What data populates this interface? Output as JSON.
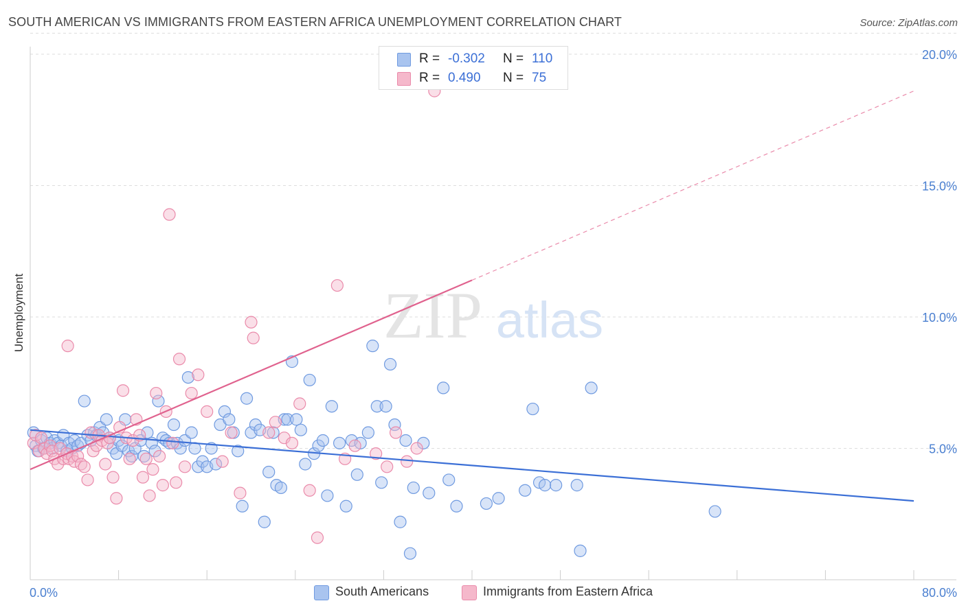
{
  "title": "SOUTH AMERICAN VS IMMIGRANTS FROM EASTERN AFRICA UNEMPLOYMENT CORRELATION CHART",
  "source": "Source: ZipAtlas.com",
  "watermark": {
    "zip": "ZIP",
    "atlas": "atlas"
  },
  "colors": {
    "blue": "#3b6fd6",
    "blue_fill": "#a9c4ef",
    "blue_stroke": "#6f9ae0",
    "pink": "#e0628e",
    "pink_fill": "#f5b8cb",
    "pink_stroke": "#ea8aaa",
    "tick_text": "#4a7fd0",
    "grid": "#dddddd"
  },
  "legend": {
    "rows": [
      {
        "r_label": "R =",
        "r_value": "-0.302",
        "n_label": "N =",
        "n_value": "110"
      },
      {
        "r_label": "R =",
        "r_value": "0.490",
        "n_label": "N =",
        "n_value": "75"
      }
    ],
    "bottom": [
      "South Americans",
      "Immigrants from Eastern Africa"
    ]
  },
  "chart_data": {
    "type": "scatter",
    "title": "SOUTH AMERICAN VS IMMIGRANTS FROM EASTERN AFRICA UNEMPLOYMENT CORRELATION CHART",
    "xlabel": "",
    "ylabel": "Unemployment",
    "xlim": [
      0,
      80
    ],
    "ylim": [
      0,
      20.8
    ],
    "x_ticks": [
      {
        "value": 0,
        "label": "0.0%"
      },
      {
        "value": 80,
        "label": "80.0%"
      }
    ],
    "y_ticks": [
      {
        "value": 5,
        "label": "5.0%"
      },
      {
        "value": 10,
        "label": "10.0%"
      },
      {
        "value": 15,
        "label": "15.0%"
      },
      {
        "value": 20,
        "label": "20.0%"
      }
    ],
    "grid": true,
    "legend_position": "top-center",
    "series": [
      {
        "name": "South Americans",
        "color": "#3b6fd6",
        "trend": {
          "x": [
            0,
            80
          ],
          "y": [
            5.7,
            3.0
          ],
          "style": "solid"
        },
        "points": [
          [
            0.3,
            5.6
          ],
          [
            0.5,
            5.1
          ],
          [
            0.7,
            4.9
          ],
          [
            1.0,
            5.3
          ],
          [
            1.2,
            5.0
          ],
          [
            1.5,
            5.4
          ],
          [
            1.8,
            5.2
          ],
          [
            2.0,
            5.0
          ],
          [
            2.2,
            5.3
          ],
          [
            2.5,
            5.2
          ],
          [
            2.8,
            5.1
          ],
          [
            3.0,
            5.5
          ],
          [
            3.3,
            4.9
          ],
          [
            3.5,
            5.2
          ],
          [
            3.8,
            5.0
          ],
          [
            4.0,
            5.3
          ],
          [
            4.3,
            5.1
          ],
          [
            4.6,
            5.2
          ],
          [
            4.9,
            6.8
          ],
          [
            5.2,
            5.5
          ],
          [
            5.5,
            5.3
          ],
          [
            5.8,
            5.6
          ],
          [
            6.0,
            5.5
          ],
          [
            6.3,
            5.8
          ],
          [
            6.6,
            5.6
          ],
          [
            6.9,
            6.1
          ],
          [
            7.2,
            5.4
          ],
          [
            7.5,
            5.0
          ],
          [
            7.8,
            4.8
          ],
          [
            8.0,
            5.3
          ],
          [
            8.3,
            5.1
          ],
          [
            8.6,
            6.1
          ],
          [
            8.9,
            4.9
          ],
          [
            9.2,
            4.7
          ],
          [
            9.5,
            5.0
          ],
          [
            10.0,
            5.3
          ],
          [
            10.3,
            4.7
          ],
          [
            10.6,
            5.6
          ],
          [
            11.0,
            5.2
          ],
          [
            11.3,
            4.9
          ],
          [
            11.6,
            6.8
          ],
          [
            12.0,
            5.4
          ],
          [
            12.3,
            5.3
          ],
          [
            12.6,
            5.2
          ],
          [
            13.0,
            5.9
          ],
          [
            13.3,
            5.2
          ],
          [
            13.6,
            5.0
          ],
          [
            14.0,
            5.3
          ],
          [
            14.3,
            7.7
          ],
          [
            14.6,
            5.6
          ],
          [
            14.9,
            5.0
          ],
          [
            15.2,
            4.3
          ],
          [
            15.6,
            4.5
          ],
          [
            16.0,
            4.3
          ],
          [
            16.4,
            5.0
          ],
          [
            16.8,
            4.4
          ],
          [
            17.2,
            5.9
          ],
          [
            17.6,
            6.4
          ],
          [
            18.0,
            6.1
          ],
          [
            18.4,
            5.6
          ],
          [
            18.8,
            4.9
          ],
          [
            19.2,
            2.8
          ],
          [
            19.6,
            6.9
          ],
          [
            20.0,
            5.6
          ],
          [
            20.4,
            5.9
          ],
          [
            20.8,
            5.7
          ],
          [
            21.2,
            2.2
          ],
          [
            21.6,
            4.1
          ],
          [
            22.0,
            5.6
          ],
          [
            22.3,
            3.6
          ],
          [
            22.7,
            3.5
          ],
          [
            23.0,
            6.1
          ],
          [
            23.3,
            6.1
          ],
          [
            23.7,
            8.3
          ],
          [
            24.1,
            6.1
          ],
          [
            24.5,
            5.7
          ],
          [
            24.9,
            4.4
          ],
          [
            25.3,
            7.6
          ],
          [
            25.7,
            4.8
          ],
          [
            26.1,
            5.1
          ],
          [
            26.5,
            5.3
          ],
          [
            26.9,
            3.2
          ],
          [
            27.3,
            6.6
          ],
          [
            28.0,
            5.2
          ],
          [
            28.6,
            2.8
          ],
          [
            29.1,
            5.3
          ],
          [
            29.6,
            4.0
          ],
          [
            29.9,
            5.2
          ],
          [
            30.6,
            5.6
          ],
          [
            31.0,
            8.9
          ],
          [
            31.4,
            6.6
          ],
          [
            31.8,
            3.7
          ],
          [
            32.2,
            6.6
          ],
          [
            32.6,
            8.2
          ],
          [
            33.0,
            5.9
          ],
          [
            33.5,
            2.2
          ],
          [
            34.0,
            5.3
          ],
          [
            34.4,
            1.0
          ],
          [
            34.7,
            3.5
          ],
          [
            35.6,
            5.2
          ],
          [
            36.1,
            3.3
          ],
          [
            37.4,
            7.3
          ],
          [
            37.9,
            3.8
          ],
          [
            38.6,
            2.8
          ],
          [
            41.3,
            2.9
          ],
          [
            42.4,
            3.1
          ],
          [
            44.8,
            3.4
          ],
          [
            45.5,
            6.5
          ],
          [
            46.1,
            3.7
          ],
          [
            46.6,
            3.6
          ],
          [
            47.6,
            3.6
          ],
          [
            49.5,
            3.6
          ],
          [
            49.8,
            1.1
          ],
          [
            50.8,
            7.3
          ],
          [
            62.0,
            2.6
          ]
        ]
      },
      {
        "name": "Immigrants from Eastern Africa",
        "color": "#e0628e",
        "trend": {
          "x": [
            0,
            40,
            80
          ],
          "y": [
            4.2,
            11.4,
            18.6
          ],
          "style": "solid-then-dashed"
        },
        "points": [
          [
            0.3,
            5.2
          ],
          [
            0.5,
            5.5
          ],
          [
            0.8,
            4.9
          ],
          [
            1.0,
            5.4
          ],
          [
            1.3,
            5.0
          ],
          [
            1.5,
            4.8
          ],
          [
            1.8,
            5.1
          ],
          [
            2.0,
            4.9
          ],
          [
            2.2,
            4.6
          ],
          [
            2.5,
            4.4
          ],
          [
            2.7,
            5.0
          ],
          [
            3.0,
            4.6
          ],
          [
            3.3,
            4.8
          ],
          [
            3.5,
            4.6
          ],
          [
            3.8,
            4.7
          ],
          [
            4.0,
            4.5
          ],
          [
            4.3,
            4.7
          ],
          [
            4.6,
            4.4
          ],
          [
            4.9,
            4.3
          ],
          [
            5.2,
            3.8
          ],
          [
            5.5,
            5.6
          ],
          [
            5.7,
            4.9
          ],
          [
            6.0,
            5.1
          ],
          [
            6.2,
            5.5
          ],
          [
            6.5,
            5.3
          ],
          [
            6.8,
            4.4
          ],
          [
            7.0,
            5.2
          ],
          [
            7.2,
            5.4
          ],
          [
            7.5,
            3.9
          ],
          [
            7.8,
            3.1
          ],
          [
            8.1,
            5.8
          ],
          [
            8.4,
            7.2
          ],
          [
            8.7,
            5.4
          ],
          [
            9.0,
            4.6
          ],
          [
            9.3,
            5.3
          ],
          [
            9.6,
            6.1
          ],
          [
            9.9,
            5.5
          ],
          [
            10.2,
            3.9
          ],
          [
            10.5,
            4.6
          ],
          [
            10.8,
            3.2
          ],
          [
            11.1,
            4.2
          ],
          [
            11.4,
            7.1
          ],
          [
            11.7,
            4.7
          ],
          [
            12.0,
            3.6
          ],
          [
            12.3,
            6.4
          ],
          [
            12.6,
            13.9
          ],
          [
            12.9,
            5.2
          ],
          [
            13.2,
            3.7
          ],
          [
            13.5,
            8.4
          ],
          [
            14.0,
            4.3
          ],
          [
            14.6,
            7.1
          ],
          [
            15.2,
            7.8
          ],
          [
            16.0,
            6.4
          ],
          [
            17.4,
            4.5
          ],
          [
            18.2,
            5.6
          ],
          [
            19.0,
            3.3
          ],
          [
            20.0,
            9.8
          ],
          [
            20.2,
            9.2
          ],
          [
            21.6,
            5.6
          ],
          [
            22.2,
            6.0
          ],
          [
            23.0,
            5.4
          ],
          [
            23.7,
            5.2
          ],
          [
            24.4,
            6.7
          ],
          [
            25.3,
            3.4
          ],
          [
            26.0,
            1.6
          ],
          [
            27.8,
            11.2
          ],
          [
            28.5,
            4.6
          ],
          [
            29.4,
            5.1
          ],
          [
            31.3,
            4.8
          ],
          [
            32.3,
            4.3
          ],
          [
            33.1,
            5.6
          ],
          [
            34.1,
            4.5
          ],
          [
            35.0,
            5.0
          ],
          [
            36.6,
            18.6
          ],
          [
            3.4,
            8.9
          ]
        ]
      }
    ]
  }
}
